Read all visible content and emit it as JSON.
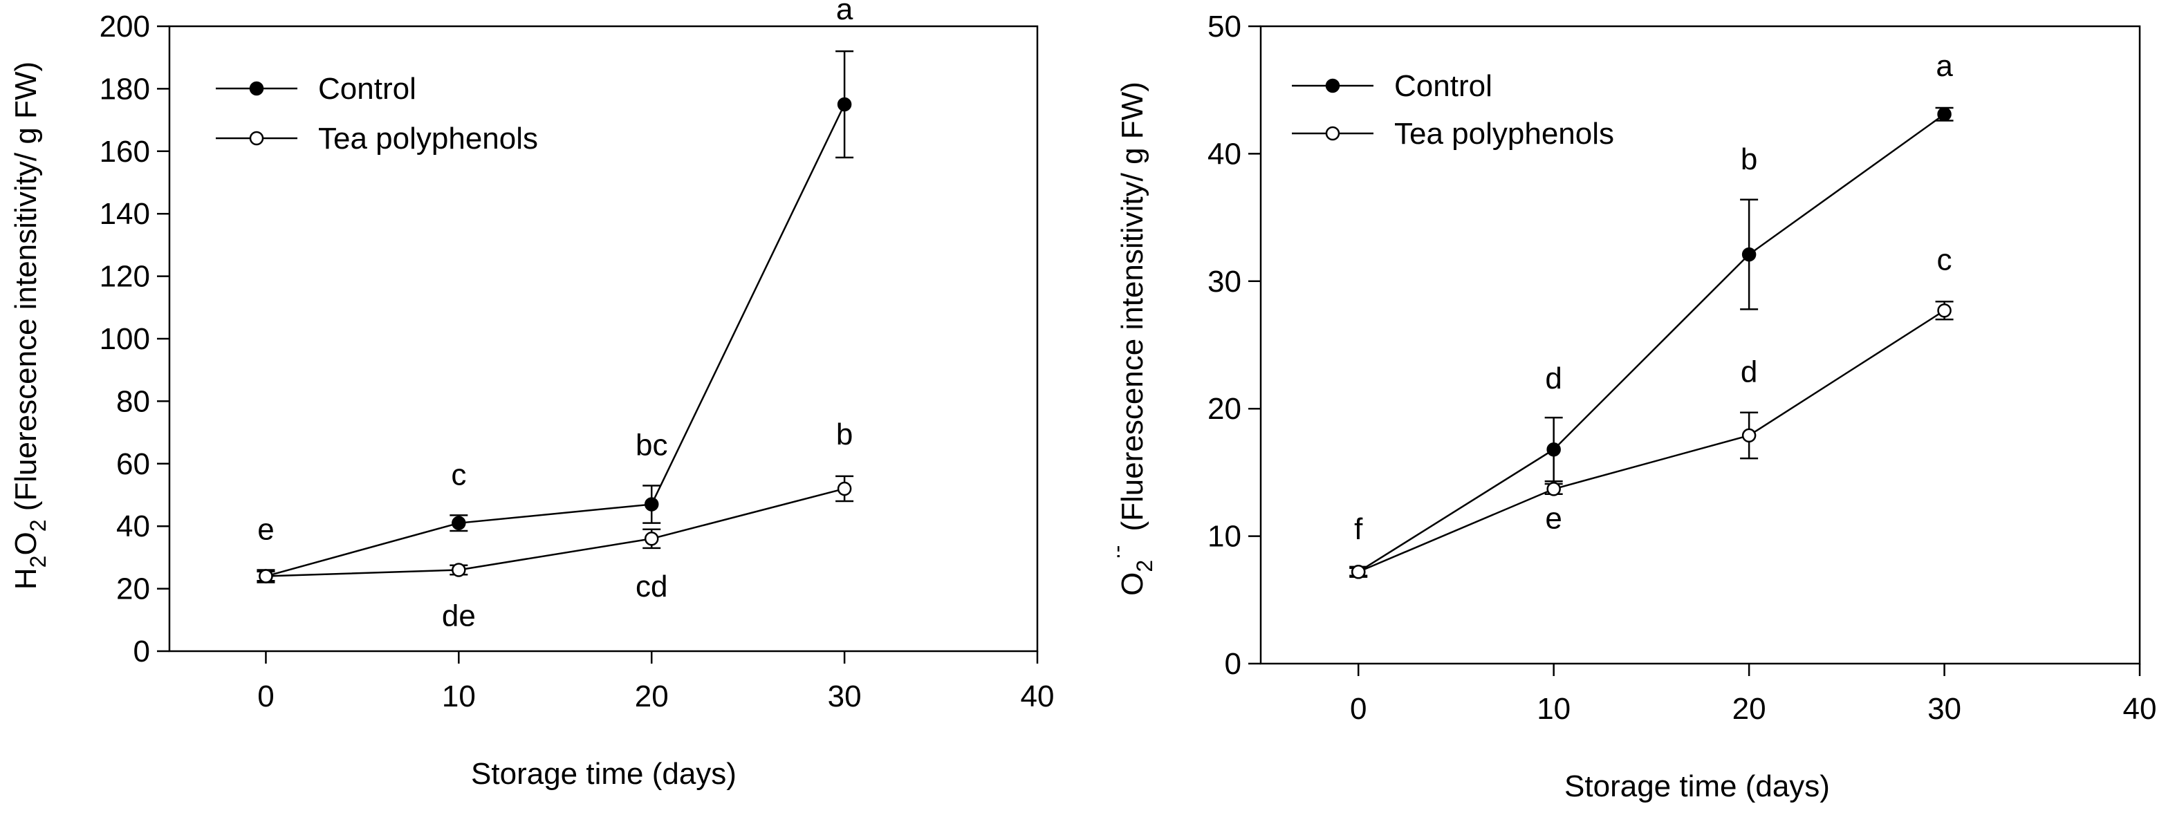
{
  "chart_data": [
    {
      "type": "line",
      "title": "",
      "xlabel": "Storage time (days)",
      "ylabel": "H2O2 (Fluerescence intensitivity/ g FW)",
      "ylabel_parts": {
        "h": "H",
        "two_a": "2",
        "o": "O",
        "two_b": "2",
        "rest": " (Fluerescence intensitivity/ g FW)"
      },
      "xlim": [
        -5,
        40
      ],
      "ylim": [
        0,
        200
      ],
      "xticks": [
        "0",
        "10",
        "20",
        "30",
        "40"
      ],
      "yticks": [
        "0",
        "20",
        "40",
        "60",
        "80",
        "100",
        "120",
        "140",
        "160",
        "180",
        "200"
      ],
      "x": [
        0,
        10,
        20,
        30
      ],
      "legend_position": "top-left",
      "series": [
        {
          "name": "Control",
          "marker": "filled-circle",
          "values": [
            24,
            41,
            47,
            175
          ],
          "errors": [
            2,
            2.5,
            6,
            17
          ],
          "labels": [
            "",
            "c",
            "bc",
            "a"
          ]
        },
        {
          "name": "Tea polyphenols",
          "marker": "open-circle",
          "values": [
            24,
            26,
            36,
            52
          ],
          "errors": [
            1.5,
            1.5,
            3,
            4
          ],
          "labels": [
            "e",
            "de",
            "cd",
            "b"
          ]
        }
      ]
    },
    {
      "type": "line",
      "title": "",
      "xlabel": "Storage time (days)",
      "ylabel": "O2·- (Fluerescence intensitivity/ g FW)",
      "ylabel_parts": {
        "o": "O",
        "two": "2",
        "sup": "·-",
        "rest": "(Fluerescence intensitivity/ g FW)"
      },
      "xlim": [
        -5,
        40
      ],
      "ylim": [
        0,
        50
      ],
      "xticks": [
        "0",
        "10",
        "20",
        "30",
        "40"
      ],
      "yticks": [
        "0",
        "10",
        "20",
        "30",
        "40",
        "50"
      ],
      "x": [
        0,
        10,
        20,
        30
      ],
      "legend_position": "top-left",
      "series": [
        {
          "name": "Control",
          "marker": "filled-circle",
          "values": [
            7.2,
            16.8,
            32.1,
            43.1
          ],
          "errors": [
            0.4,
            2.5,
            4.3,
            0.5
          ],
          "labels": [
            "f",
            "d",
            "b",
            "a"
          ]
        },
        {
          "name": "Tea polyphenols",
          "marker": "open-circle",
          "values": [
            7.2,
            13.7,
            17.9,
            27.7
          ],
          "errors": [
            0.3,
            0.4,
            1.8,
            0.7
          ],
          "labels": [
            "",
            "e",
            "d",
            "c"
          ]
        }
      ]
    }
  ]
}
